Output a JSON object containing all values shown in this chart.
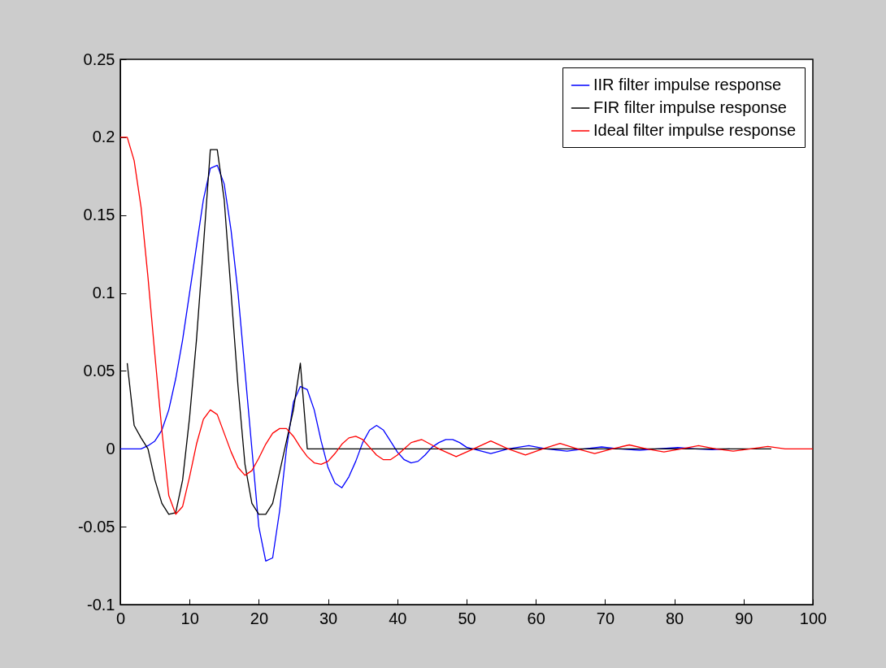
{
  "chart_data": {
    "type": "line",
    "xlim": [
      0,
      100
    ],
    "xticks": [
      0,
      10,
      20,
      30,
      40,
      50,
      60,
      70,
      80,
      90,
      100
    ],
    "ylim": [
      -0.1,
      0.25
    ],
    "yticks": [
      -0.1,
      -0.05,
      0,
      0.05,
      0.1,
      0.15,
      0.2,
      0.25
    ],
    "legend": "top right",
    "grid": false,
    "series": [
      {
        "name": "IIR filter impulse response",
        "color": "#0000ff",
        "x": [
          0,
          1,
          2,
          3,
          4,
          5,
          6,
          7,
          8,
          9,
          10,
          11,
          12,
          13,
          14,
          15,
          16,
          17,
          18,
          19,
          20,
          21,
          22,
          23,
          24,
          25,
          26,
          27,
          28,
          29,
          30,
          31,
          32,
          33,
          34,
          35,
          36,
          37,
          38,
          39,
          40,
          41,
          42,
          43,
          44,
          45,
          46,
          47,
          48,
          49,
          50,
          53.5,
          56,
          59,
          61.5,
          64.5,
          67,
          69.5,
          72,
          75,
          77.5,
          80.5,
          83,
          85.5,
          88
        ],
        "values": [
          0,
          0,
          0,
          0,
          0.002,
          0.005,
          0.012,
          0.025,
          0.045,
          0.07,
          0.1,
          0.13,
          0.16,
          0.18,
          0.182,
          0.17,
          0.14,
          0.1,
          0.05,
          0,
          -0.05,
          -0.072,
          -0.07,
          -0.04,
          0,
          0.03,
          0.04,
          0.038,
          0.025,
          0.005,
          -0.012,
          -0.022,
          -0.025,
          -0.018,
          -0.008,
          0.004,
          0.012,
          0.015,
          0.012,
          0.005,
          -0.002,
          -0.007,
          -0.009,
          -0.008,
          -0.004,
          0.001,
          0.004,
          0.006,
          0.006,
          0.004,
          0.001,
          -0.003,
          0,
          0.002,
          0,
          -0.0015,
          0,
          0.0012,
          0,
          -0.001,
          0,
          0.0008,
          0,
          -0.0006,
          0
        ]
      },
      {
        "name": "FIR filter impulse response",
        "color": "#000000",
        "x": [
          1,
          2,
          3,
          4,
          5,
          6,
          7,
          8,
          9,
          10,
          11,
          12,
          13,
          14,
          15,
          16,
          17,
          18,
          19,
          20,
          21,
          22,
          23,
          24,
          25,
          26,
          27,
          94
        ],
        "values": [
          0.055,
          0.015,
          0.007,
          0,
          -0.02,
          -0.035,
          -0.042,
          -0.041,
          -0.02,
          0.02,
          0.07,
          0.13,
          0.192,
          0.192,
          0.16,
          0.1,
          0.04,
          -0.01,
          -0.035,
          -0.042,
          -0.042,
          -0.035,
          -0.015,
          0.005,
          0.025,
          0.055,
          0,
          0
        ]
      },
      {
        "name": "Ideal filter impulse response",
        "color": "#ff0000",
        "x": [
          0,
          1,
          2,
          3,
          4,
          5,
          6,
          7,
          8,
          9,
          10,
          11,
          12,
          13,
          14,
          15,
          16,
          17,
          18,
          19,
          20,
          21,
          22,
          23,
          24,
          25,
          26,
          27,
          28,
          29,
          30,
          31,
          32,
          33,
          34,
          35,
          36,
          37,
          38,
          39,
          40,
          41,
          42,
          43.5,
          46,
          48.5,
          51,
          53.5,
          56,
          58.5,
          61,
          63.5,
          66,
          68.5,
          71,
          73.5,
          76,
          78.5,
          81,
          83.5,
          86,
          88.5,
          91,
          93.5,
          96,
          100
        ],
        "values": [
          0.2,
          0.2,
          0.185,
          0.155,
          0.11,
          0.06,
          0.012,
          -0.03,
          -0.042,
          -0.037,
          -0.018,
          0.003,
          0.019,
          0.025,
          0.022,
          0.01,
          -0.002,
          -0.012,
          -0.017,
          -0.014,
          -0.006,
          0.003,
          0.01,
          0.013,
          0.013,
          0.008,
          0.001,
          -0.005,
          -0.009,
          -0.01,
          -0.008,
          -0.003,
          0.003,
          0.007,
          0.008,
          0.006,
          0.001,
          -0.004,
          -0.007,
          -0.007,
          -0.004,
          0,
          0.004,
          0.006,
          0,
          -0.005,
          0,
          0.005,
          0,
          -0.004,
          0,
          0.0035,
          0,
          -0.003,
          0,
          0.0025,
          0,
          -0.002,
          0,
          0.002,
          0,
          -0.0015,
          0,
          0.0015,
          0,
          0
        ]
      }
    ]
  }
}
